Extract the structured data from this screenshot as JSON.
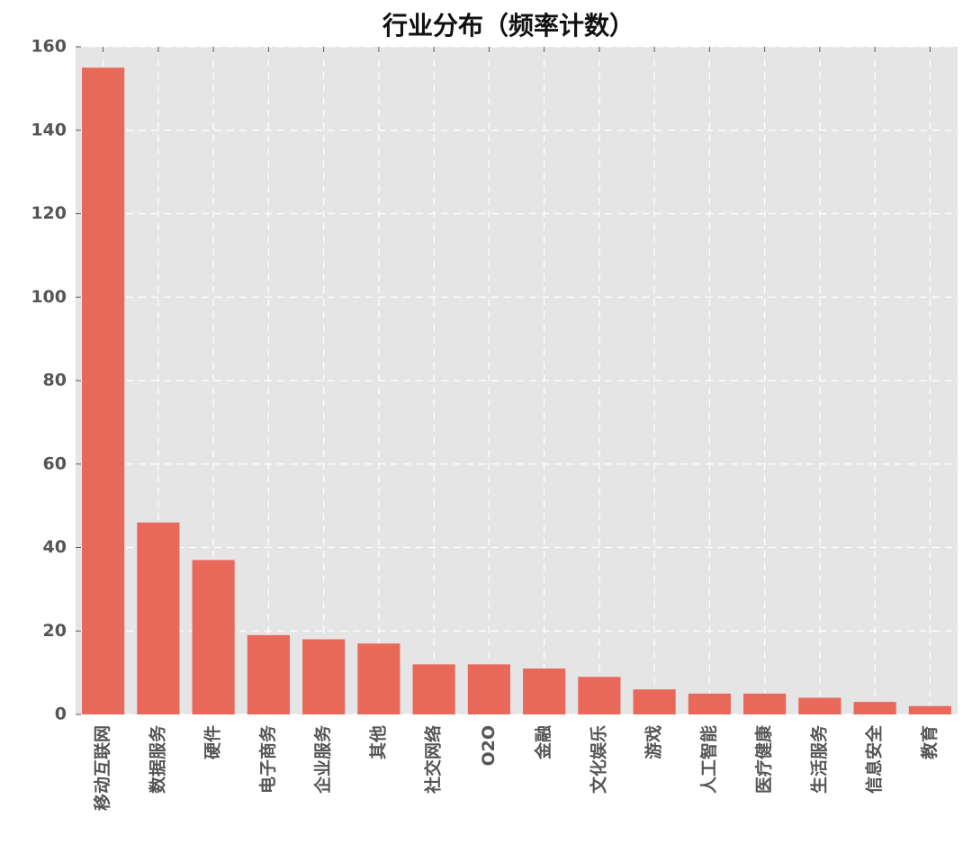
{
  "chart_data": {
    "type": "bar",
    "title": "行业分布（频率计数）",
    "categories": [
      "移动互联网",
      "数据服务",
      "硬件",
      "电子商务",
      "企业服务",
      "其他",
      "社交网络",
      "O2O",
      "金融",
      "文化娱乐",
      "游戏",
      "人工智能",
      "医疗健康",
      "生活服务",
      "信息安全",
      "教育"
    ],
    "values": [
      155,
      46,
      37,
      19,
      18,
      17,
      12,
      12,
      11,
      9,
      6,
      5,
      5,
      4,
      3,
      2
    ],
    "color": "#e8695a",
    "ylim": [
      0,
      160
    ],
    "yticks": [
      0,
      20,
      40,
      60,
      80,
      100,
      120,
      140,
      160
    ],
    "grid": true
  }
}
